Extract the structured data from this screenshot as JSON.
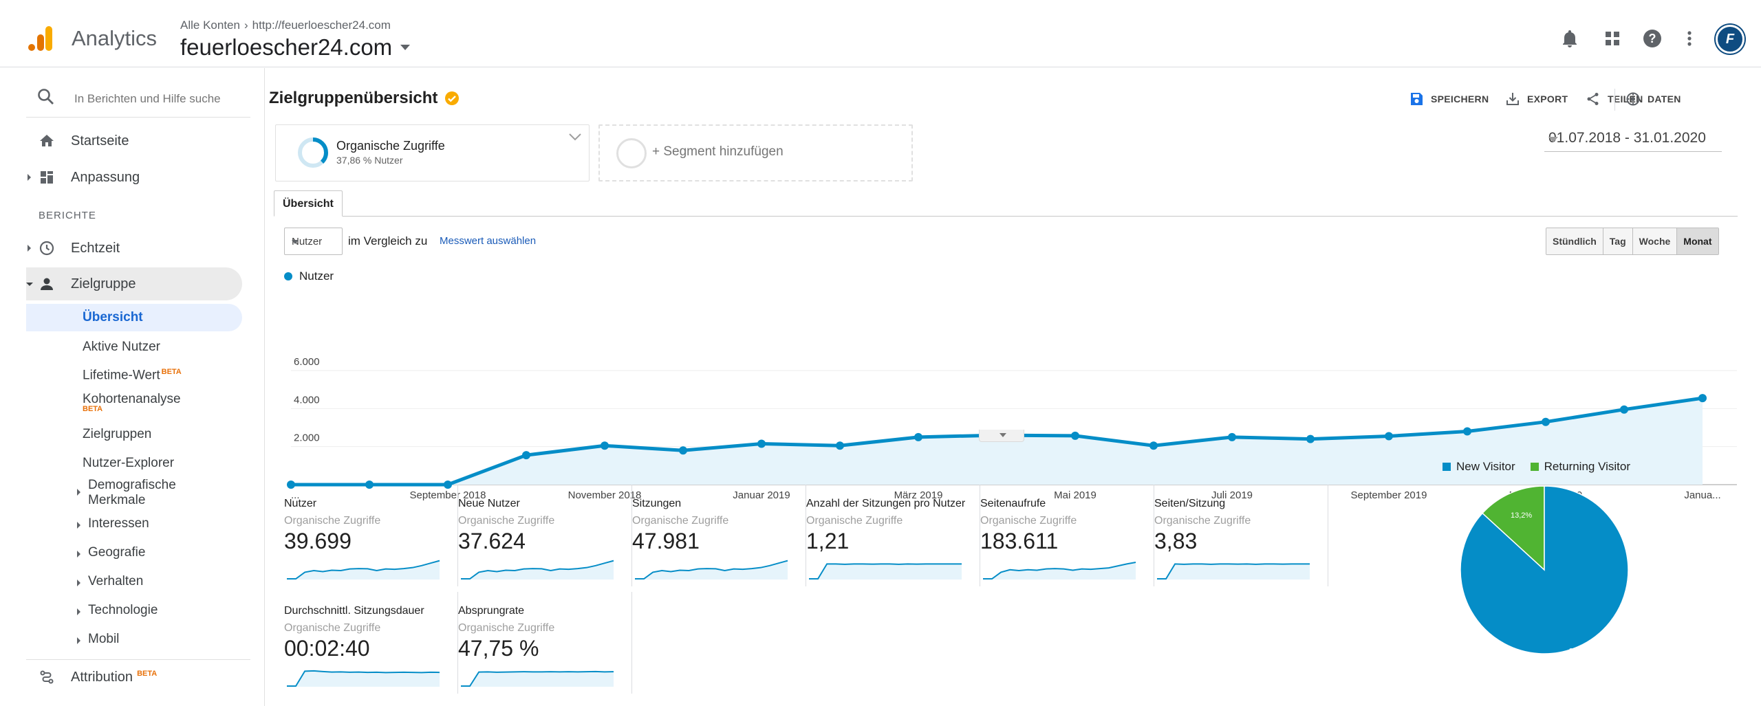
{
  "header": {
    "app_name": "Analytics",
    "breadcrumb_account": "Alle Konten",
    "breadcrumb_url": "http://feuerloescher24.com",
    "property_name": "feuerloescher24.com",
    "avatar_initials": "F"
  },
  "sidebar": {
    "search_placeholder": "In Berichten und Hilfe suche",
    "home": "Startseite",
    "customization": "Anpassung",
    "section_reports": "BERICHTE",
    "realtime": "Echtzeit",
    "audience": "Zielgruppe",
    "audience_items": [
      {
        "label": "Übersicht",
        "active": true
      },
      {
        "label": "Aktive Nutzer"
      },
      {
        "label": "Lifetime-Wert",
        "badge": "BETA"
      },
      {
        "label": "Kohortenanalyse",
        "badge": "BETA"
      },
      {
        "label": "Zielgruppen"
      },
      {
        "label": "Nutzer-Explorer"
      },
      {
        "label": "Demografische Merkmale",
        "expandable": true
      },
      {
        "label": "Interessen",
        "expandable": true
      },
      {
        "label": "Geografie",
        "expandable": true
      },
      {
        "label": "Verhalten",
        "expandable": true
      },
      {
        "label": "Technologie",
        "expandable": true
      },
      {
        "label": "Mobil",
        "expandable": true
      }
    ],
    "attribution": "Attribution",
    "attribution_badge": "BETA"
  },
  "page": {
    "title": "Zielgruppenübersicht",
    "actions": {
      "save": "SPEICHERN",
      "export": "EXPORT",
      "share": "TEILEN",
      "insights": "DATEN"
    },
    "segment": {
      "name": "Organische Zugriffe",
      "subtitle": "37,86 % Nutzer",
      "share": 0.3786
    },
    "add_segment": "+ Segment hinzufügen",
    "date_range": "01.07.2018 - 31.01.2020",
    "tab": "Übersicht",
    "metric_select": "Nutzer",
    "compare_text": "im Vergleich zu",
    "compare_link": "Messwert auswählen",
    "granularity": [
      {
        "label": "Stündlich"
      },
      {
        "label": "Tag"
      },
      {
        "label": "Woche"
      },
      {
        "label": "Monat",
        "active": true
      }
    ],
    "legend_series": "Nutzer"
  },
  "colors": {
    "primary": "#058dc7",
    "returning": "#50b432",
    "fill": "#e6f4fb",
    "accent": "#f9ab00",
    "beta": "#e8710a"
  },
  "chart_data": [
    {
      "type": "area",
      "series": [
        {
          "name": "Nutzer",
          "values": [
            0,
            0,
            0,
            1550,
            2050,
            1800,
            2150,
            2050,
            2500,
            2600,
            2570,
            2050,
            2500,
            2400,
            2550,
            2800,
            3300,
            3950,
            4550
          ]
        }
      ],
      "x": [
        "Jul 2018",
        "Aug 2018",
        "Sep 2018",
        "Okt 2018",
        "Nov 2018",
        "Dez 2018",
        "Jan 2019",
        "Feb 2019",
        "Mär 2019",
        "Apr 2019",
        "Mai 2019",
        "Jun 2019",
        "Jul 2019",
        "Aug 2019",
        "Sep 2019",
        "Okt 2019",
        "Nov 2019",
        "Dez 2019",
        "Jan 2020"
      ],
      "x_tick_labels": [
        {
          "index": 0,
          "label": "..."
        },
        {
          "index": 2,
          "label": "September 2018"
        },
        {
          "index": 4,
          "label": "November 2018"
        },
        {
          "index": 6,
          "label": "Januar 2019"
        },
        {
          "index": 8,
          "label": "März 2019"
        },
        {
          "index": 10,
          "label": "Mai 2019"
        },
        {
          "index": 12,
          "label": "Juli 2019"
        },
        {
          "index": 14,
          "label": "September 2019"
        },
        {
          "index": 16,
          "label": "November 2019"
        },
        {
          "index": 18,
          "label": "Janua..."
        }
      ],
      "y_ticks": [
        {
          "value": 2000,
          "label": "2.000"
        },
        {
          "value": 4000,
          "label": "4.000"
        },
        {
          "value": 6000,
          "label": "6.000"
        }
      ],
      "ylim": [
        0,
        6000
      ],
      "grid": true
    },
    {
      "type": "pie",
      "slices": [
        {
          "name": "New Visitor",
          "value": 86.8,
          "label": "86,8%"
        },
        {
          "name": "Returning Visitor",
          "value": 13.2,
          "label": "13,2%"
        }
      ],
      "legend": "top"
    }
  ],
  "scorecards": [
    {
      "title": "Nutzer",
      "segment": "Organische Zugriffe",
      "value": "39.699",
      "spark": [
        0,
        0,
        0.4,
        0.5,
        0.44,
        0.52,
        0.5,
        0.6,
        0.62,
        0.61,
        0.5,
        0.6,
        0.58,
        0.62,
        0.68,
        0.8,
        0.95,
        1.1
      ]
    },
    {
      "title": "Neue Nutzer",
      "segment": "Organische Zugriffe",
      "value": "37.624",
      "spark": [
        0,
        0,
        0.4,
        0.5,
        0.44,
        0.52,
        0.5,
        0.6,
        0.62,
        0.61,
        0.5,
        0.6,
        0.58,
        0.62,
        0.68,
        0.8,
        0.95,
        1.1
      ]
    },
    {
      "title": "Sitzungen",
      "segment": "Organische Zugriffe",
      "value": "47.981",
      "spark": [
        0,
        0,
        0.4,
        0.5,
        0.44,
        0.52,
        0.5,
        0.6,
        0.62,
        0.61,
        0.5,
        0.6,
        0.58,
        0.62,
        0.68,
        0.8,
        0.95,
        1.1
      ]
    },
    {
      "title": "Anzahl der Sitzungen pro Nutzer",
      "segment": "Organische Zugriffe",
      "value": "1,21",
      "spark": [
        0,
        0,
        0.9,
        0.9,
        0.88,
        0.9,
        0.9,
        0.89,
        0.9,
        0.9,
        0.88,
        0.9,
        0.89,
        0.9,
        0.9,
        0.9,
        0.9,
        0.9
      ]
    },
    {
      "title": "Seitenaufrufe",
      "segment": "Organische Zugriffe",
      "value": "183.611",
      "spark": [
        0,
        0,
        0.4,
        0.55,
        0.5,
        0.55,
        0.52,
        0.6,
        0.62,
        0.6,
        0.52,
        0.6,
        0.58,
        0.62,
        0.66,
        0.78,
        0.9,
        1.0
      ]
    },
    {
      "title": "Seiten/Sitzung",
      "segment": "Organische Zugriffe",
      "value": "3,83",
      "spark": [
        0,
        0,
        0.9,
        0.88,
        0.9,
        0.9,
        0.88,
        0.9,
        0.9,
        0.89,
        0.9,
        0.88,
        0.9,
        0.9,
        0.89,
        0.9,
        0.9,
        0.9
      ]
    },
    {
      "title": "Durchschnittl. Sitzungsdauer",
      "segment": "Organische Zugriffe",
      "value": "00:02:40",
      "spark": [
        0,
        0,
        0.9,
        0.92,
        0.88,
        0.85,
        0.86,
        0.84,
        0.85,
        0.83,
        0.84,
        0.82,
        0.83,
        0.84,
        0.83,
        0.82,
        0.84,
        0.83
      ]
    },
    {
      "title": "Absprungrate",
      "segment": "Organische Zugriffe",
      "value": "47,75 %",
      "spark": [
        0,
        0,
        0.85,
        0.86,
        0.84,
        0.85,
        0.86,
        0.87,
        0.86,
        0.86,
        0.87,
        0.86,
        0.87,
        0.86,
        0.87,
        0.88,
        0.86,
        0.87
      ]
    }
  ]
}
